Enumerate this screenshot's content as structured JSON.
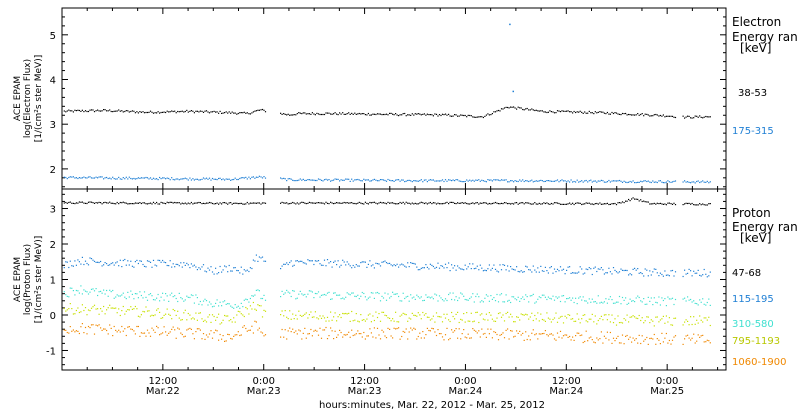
{
  "chart_data": [
    {
      "type": "scatter",
      "panel": "electron",
      "ylabel": [
        "ACE EPAM",
        "log(Electron Flux)",
        "[1/(cm²s ster MeV)]"
      ],
      "ylim": [
        1.55,
        5.6
      ],
      "yticks": [
        2,
        3,
        4,
        5
      ],
      "xlim": [
        0,
        79
      ],
      "legend": {
        "title": [
          "Electron",
          "Energy ran",
          "[keV]"
        ],
        "placement": "right"
      },
      "series": [
        {
          "name": "38-53",
          "color": "#000000",
          "points": [
            [
              0,
              3.3
            ],
            [
              5,
              3.32
            ],
            [
              10,
              3.28
            ],
            [
              15,
              3.3
            ],
            [
              20,
              3.27
            ],
            [
              22,
              3.25
            ],
            [
              23.5,
              3.33
            ],
            [
              24.5,
              3.3
            ],
            [
              27,
              3.22
            ],
            [
              28,
              3.25
            ],
            [
              32,
              3.25
            ],
            [
              40,
              3.23
            ],
            [
              45,
              3.22
            ],
            [
              50,
              3.18
            ],
            [
              53,
              3.4
            ],
            [
              57,
              3.3
            ],
            [
              64,
              3.27
            ],
            [
              70,
              3.22
            ],
            [
              72,
              3.2
            ],
            [
              74,
              3.17
            ],
            [
              77,
              3.18
            ]
          ]
        },
        {
          "name": "175-315",
          "color": "#1f7fd4",
          "points": [
            [
              0,
              1.82
            ],
            [
              10,
              1.8
            ],
            [
              20,
              1.78
            ],
            [
              23.5,
              1.83
            ],
            [
              27,
              1.77
            ],
            [
              40,
              1.75
            ],
            [
              55,
              1.75
            ],
            [
              70,
              1.73
            ],
            [
              77,
              1.72
            ]
          ]
        }
      ],
      "outliers": [
        [
          53.2,
          5.25
        ],
        [
          53.6,
          3.75
        ]
      ]
    },
    {
      "type": "scatter",
      "panel": "proton",
      "ylabel": [
        "ACE EPAM",
        "log(Proton Flux)",
        "[1/(cm²s ster MeV)]"
      ],
      "ylim": [
        -1.55,
        3.55
      ],
      "yticks": [
        -1,
        0,
        1,
        2,
        3
      ],
      "xlim": [
        0,
        79
      ],
      "xlabel": "hours:minutes, Mar. 22, 2012 - Mar. 25, 2012",
      "xticks": [
        {
          "x": 12,
          "label": [
            "12:00",
            "Mar.22"
          ]
        },
        {
          "x": 24,
          "label": [
            "0:00",
            "Mar.23"
          ]
        },
        {
          "x": 36,
          "label": [
            "12:00",
            "Mar.23"
          ]
        },
        {
          "x": 48,
          "label": [
            "0:00",
            "Mar.24"
          ]
        },
        {
          "x": 60,
          "label": [
            "12:00",
            "Mar.24"
          ]
        },
        {
          "x": 72,
          "label": [
            "0:00",
            "Mar.25"
          ]
        }
      ],
      "legend": {
        "title": [
          "Proton",
          "Energy ran",
          "[keV]"
        ],
        "placement": "right"
      },
      "series": [
        {
          "name": "47-68",
          "color": "#000000",
          "points": [
            [
              0,
              3.18
            ],
            [
              10,
              3.17
            ],
            [
              20,
              3.16
            ],
            [
              27,
              3.17
            ],
            [
              40,
              3.17
            ],
            [
              55,
              3.16
            ],
            [
              66,
              3.15
            ],
            [
              68,
              3.3
            ],
            [
              70,
              3.15
            ],
            [
              77,
              3.14
            ]
          ]
        },
        {
          "name": "115-195",
          "color": "#1f7fd4",
          "points": [
            [
              0,
              1.4
            ],
            [
              2,
              1.55
            ],
            [
              5,
              1.5
            ],
            [
              10,
              1.45
            ],
            [
              15,
              1.45
            ],
            [
              18,
              1.25
            ],
            [
              20,
              1.35
            ],
            [
              22,
              1.2
            ],
            [
              23,
              1.65
            ],
            [
              24,
              1.55
            ],
            [
              26,
              1.3
            ],
            [
              27,
              1.5
            ],
            [
              35,
              1.45
            ],
            [
              50,
              1.35
            ],
            [
              65,
              1.25
            ],
            [
              72,
              1.2
            ],
            [
              77,
              1.2
            ]
          ]
        },
        {
          "name": "310-580",
          "color": "#40e0d0",
          "points": [
            [
              0,
              0.6
            ],
            [
              2,
              0.75
            ],
            [
              5,
              0.6
            ],
            [
              10,
              0.55
            ],
            [
              15,
              0.5
            ],
            [
              18,
              0.35
            ],
            [
              21,
              0.3
            ],
            [
              23,
              0.65
            ],
            [
              24,
              0.5
            ],
            [
              27,
              0.6
            ],
            [
              35,
              0.55
            ],
            [
              50,
              0.5
            ],
            [
              65,
              0.45
            ],
            [
              72,
              0.4
            ],
            [
              77,
              0.4
            ]
          ]
        },
        {
          "name": "795-1193",
          "color": "#c8e000",
          "points": [
            [
              0,
              0.2
            ],
            [
              5,
              0.15
            ],
            [
              10,
              0.1
            ],
            [
              15,
              0.0
            ],
            [
              20,
              -0.15
            ],
            [
              23,
              0.3
            ],
            [
              24,
              0.05
            ],
            [
              27,
              0.0
            ],
            [
              40,
              -0.05
            ],
            [
              55,
              -0.05
            ],
            [
              70,
              -0.15
            ],
            [
              77,
              -0.15
            ]
          ]
        },
        {
          "name": "1060-1900",
          "color": "#f08800",
          "points": [
            [
              0,
              -0.35
            ],
            [
              5,
              -0.4
            ],
            [
              10,
              -0.45
            ],
            [
              15,
              -0.5
            ],
            [
              20,
              -0.6
            ],
            [
              23,
              -0.3
            ],
            [
              24,
              -0.55
            ],
            [
              27,
              -0.5
            ],
            [
              40,
              -0.5
            ],
            [
              55,
              -0.55
            ],
            [
              70,
              -0.65
            ],
            [
              77,
              -0.7
            ]
          ]
        }
      ]
    }
  ]
}
